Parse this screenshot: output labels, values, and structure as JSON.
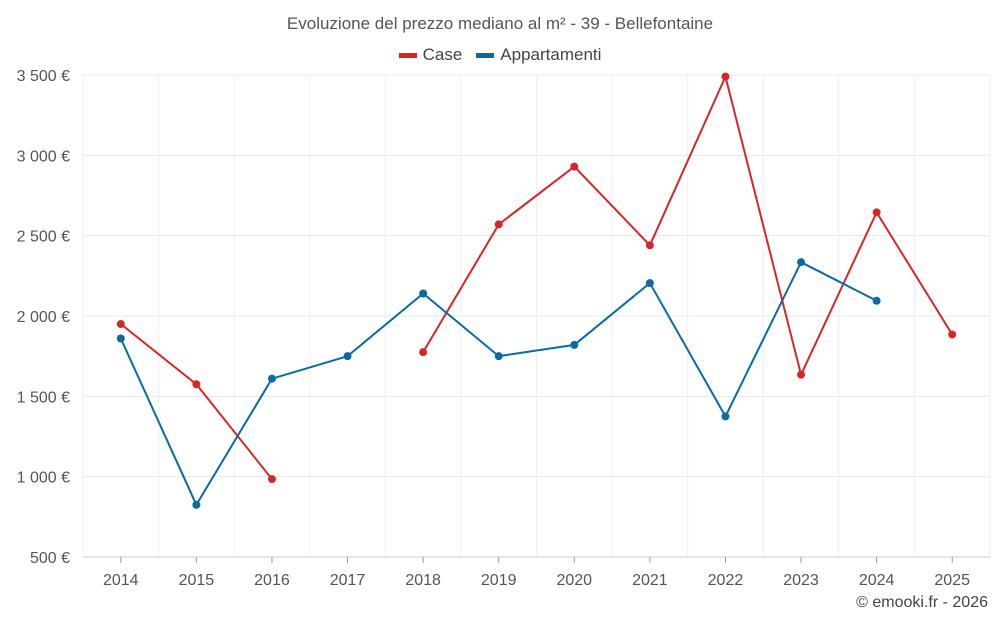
{
  "chart_data": {
    "type": "line",
    "title": "Evoluzione del prezzo mediano al m² - 39 - Bellefontaine",
    "categories": [
      "2014",
      "2015",
      "2016",
      "2017",
      "2018",
      "2019",
      "2020",
      "2021",
      "2022",
      "2023",
      "2024",
      "2025"
    ],
    "y_ticks": [
      "500 €",
      "1 000 €",
      "1 500 €",
      "2 000 €",
      "2 500 €",
      "3 000 €",
      "3 500 €"
    ],
    "ylim": [
      500,
      3500
    ],
    "grid": true,
    "legend_position": "top-center",
    "series": [
      {
        "name": "Case",
        "color": "#d62728",
        "values": [
          1950,
          1575,
          985,
          null,
          1775,
          2570,
          2930,
          2440,
          3490,
          1635,
          2645,
          1885
        ]
      },
      {
        "name": "Appartamenti",
        "color": "#0a6aa1",
        "values": [
          1860,
          825,
          1610,
          1750,
          2140,
          1750,
          1820,
          2205,
          1375,
          2335,
          2095,
          null
        ]
      }
    ]
  },
  "credit": "© emooki.fr - 2026"
}
